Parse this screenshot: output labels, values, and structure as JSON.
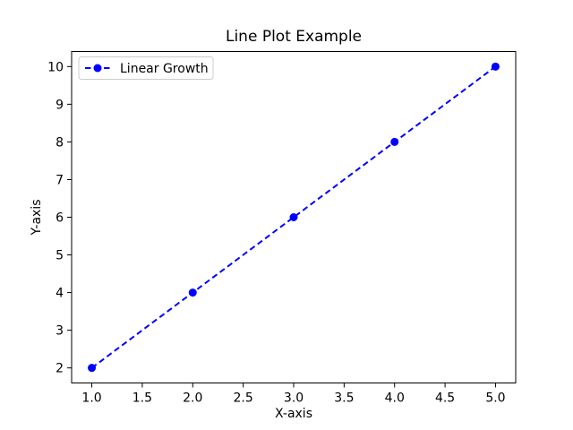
{
  "chart_data": {
    "type": "line",
    "title": "Line Plot Example",
    "xlabel": "X-axis",
    "ylabel": "Y-axis",
    "x": [
      1,
      2,
      3,
      4,
      5
    ],
    "series": [
      {
        "name": "Linear Growth",
        "values": [
          2,
          4,
          6,
          8,
          10
        ],
        "color": "#0000ff",
        "linestyle": "dashed",
        "marker": "circle"
      }
    ],
    "xlim": [
      0.8,
      5.2
    ],
    "ylim": [
      1.6,
      10.4
    ],
    "xticks": [
      "1.0",
      "1.5",
      "2.0",
      "2.5",
      "3.0",
      "3.5",
      "4.0",
      "4.5",
      "5.0"
    ],
    "xtick_values": [
      1.0,
      1.5,
      2.0,
      2.5,
      3.0,
      3.5,
      4.0,
      4.5,
      5.0
    ],
    "yticks": [
      "2",
      "3",
      "4",
      "5",
      "6",
      "7",
      "8",
      "9",
      "10"
    ],
    "ytick_values": [
      2,
      3,
      4,
      5,
      6,
      7,
      8,
      9,
      10
    ],
    "grid": false,
    "legend_position": "upper-left",
    "colors": {
      "axis": "#000000",
      "tick_label": "#000000",
      "legend_border": "#cccccc",
      "background": "#ffffff"
    }
  }
}
